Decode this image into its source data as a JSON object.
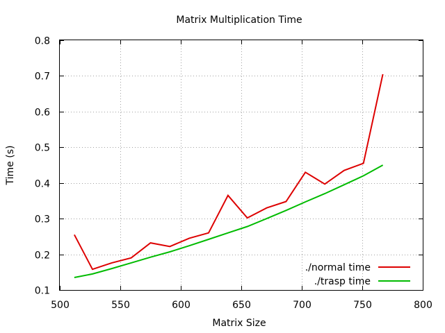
{
  "chart_data": {
    "type": "line",
    "title": "Matrix Multiplication Time",
    "xlabel": "Matrix Size",
    "ylabel": "Time (s)",
    "xlim": [
      500,
      800
    ],
    "ylim": [
      0.1,
      0.8
    ],
    "x_ticks": [
      500,
      550,
      600,
      650,
      700,
      750,
      800
    ],
    "y_ticks": [
      0.1,
      0.2,
      0.3,
      0.4,
      0.5,
      0.6,
      0.7,
      0.8
    ],
    "x_tick_labels": [
      "500",
      "550",
      "600",
      "650",
      "700",
      "750",
      "800"
    ],
    "y_tick_labels": [
      "0.1",
      "0.2",
      "0.3",
      "0.4",
      "0.5",
      "0.6",
      "0.7",
      "0.8"
    ],
    "grid": true,
    "legend_position": "bottom-right",
    "series": [
      {
        "name": "./normal time",
        "color": "#dd0000",
        "x": [
          512,
          527,
          543,
          559,
          575,
          591,
          607,
          623,
          639,
          655,
          671,
          687,
          703,
          719,
          735,
          751,
          767
        ],
        "y": [
          0.255,
          0.158,
          0.176,
          0.19,
          0.232,
          0.222,
          0.245,
          0.26,
          0.365,
          0.302,
          0.33,
          0.348,
          0.43,
          0.397,
          0.435,
          0.455,
          0.705
        ]
      },
      {
        "name": "./trasp time",
        "color": "#00bb00",
        "x": [
          512,
          527,
          543,
          559,
          575,
          591,
          607,
          623,
          639,
          655,
          671,
          687,
          703,
          719,
          735,
          751,
          767
        ],
        "y": [
          0.135,
          0.145,
          0.16,
          0.176,
          0.192,
          0.207,
          0.224,
          0.242,
          0.26,
          0.278,
          0.3,
          0.323,
          0.347,
          0.37,
          0.395,
          0.42,
          0.45
        ]
      }
    ]
  }
}
